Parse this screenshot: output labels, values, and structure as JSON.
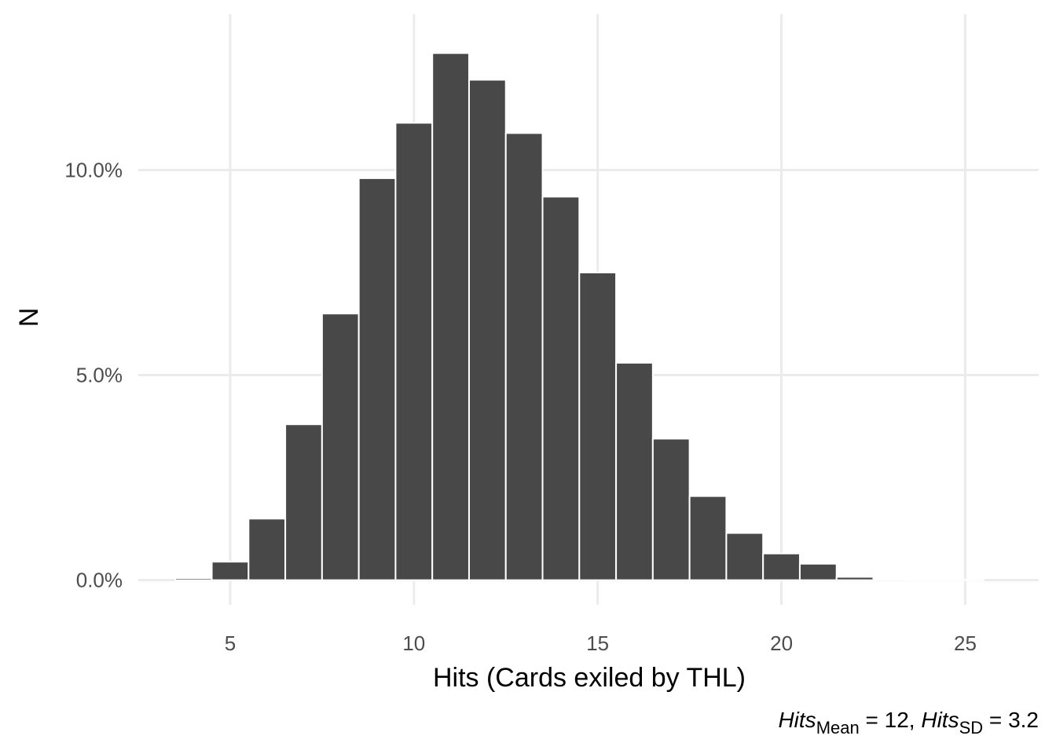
{
  "chart_data": {
    "type": "bar",
    "xlabel": "Hits (Cards exiled by THL)",
    "ylabel": "N",
    "x_ticks": [
      5,
      10,
      15,
      20,
      25
    ],
    "y_ticks": [
      0.0,
      5.0,
      10.0
    ],
    "y_tick_labels": [
      "0.0%",
      "5.0%",
      "10.0%"
    ],
    "xlim": [
      2.5,
      27
    ],
    "ylim": [
      -0.6,
      13.8
    ],
    "y_unit": "percent",
    "grid": true,
    "bar_color": "#484848",
    "bar_outline": "#ffffff",
    "gridline_color": "#ebebeb",
    "x": [
      4,
      5,
      6,
      7,
      8,
      9,
      10,
      11,
      12,
      13,
      14,
      15,
      16,
      17,
      18,
      19,
      20,
      21,
      22,
      23,
      24,
      25
    ],
    "values": [
      0.05,
      0.45,
      1.5,
      3.8,
      6.5,
      9.8,
      11.15,
      12.85,
      12.2,
      10.9,
      9.35,
      7.5,
      5.3,
      3.45,
      2.05,
      1.15,
      0.65,
      0.4,
      0.08,
      0.02,
      0.01,
      0.01
    ]
  },
  "caption": {
    "var1": "Hits",
    "sub1": "Mean",
    "val1": " = 12, ",
    "var2": "Hits",
    "sub2": "SD",
    "val2": " = 3.2"
  }
}
